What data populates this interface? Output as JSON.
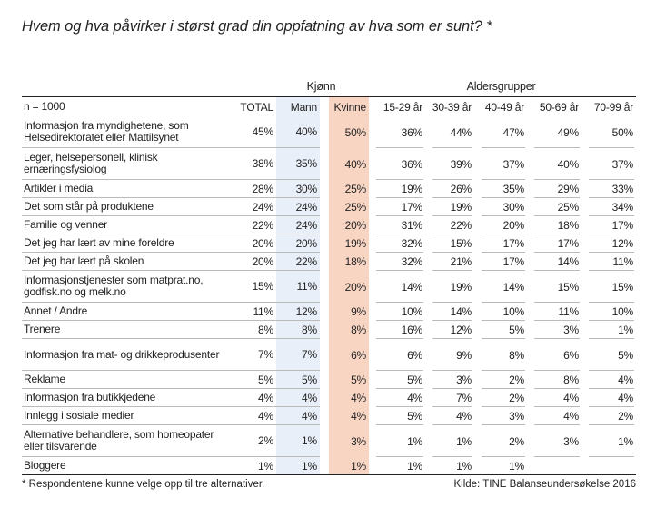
{
  "title": "Hvem og hva påvirker i størst grad din oppfatning av hva som er sunt? *",
  "group_headers": {
    "gender": "Kjønn",
    "age": "Aldersgrupper"
  },
  "columns": [
    "n = 1000",
    "TOTAL",
    "Mann",
    "Kvinne",
    "15-29 år",
    "30-39 år",
    "40-49 år",
    "50-69 år",
    "70-99 år"
  ],
  "rows": [
    {
      "label": "Informasjon fra myndighetene, som Helsedirektoratet eller Mattilsynet",
      "two": true,
      "values": [
        "45%",
        "40%",
        "50%",
        "36%",
        "44%",
        "47%",
        "49%",
        "50%"
      ]
    },
    {
      "label": "Leger, helsepersonell, klinisk ernæringsfysiolog",
      "two": true,
      "values": [
        "38%",
        "35%",
        "40%",
        "36%",
        "39%",
        "37%",
        "40%",
        "37%"
      ]
    },
    {
      "label": "Artikler i media",
      "values": [
        "28%",
        "30%",
        "25%",
        "19%",
        "26%",
        "35%",
        "29%",
        "33%"
      ]
    },
    {
      "label": "Det som står på produktene",
      "values": [
        "24%",
        "24%",
        "25%",
        "17%",
        "19%",
        "30%",
        "25%",
        "34%"
      ]
    },
    {
      "label": "Familie og venner",
      "values": [
        "22%",
        "24%",
        "20%",
        "31%",
        "22%",
        "20%",
        "18%",
        "17%"
      ]
    },
    {
      "label": "Det jeg har lært av mine foreldre",
      "values": [
        "20%",
        "20%",
        "19%",
        "32%",
        "15%",
        "17%",
        "17%",
        "12%"
      ]
    },
    {
      "label": "Det jeg har lært på skolen",
      "values": [
        "20%",
        "22%",
        "18%",
        "32%",
        "21%",
        "17%",
        "14%",
        "11%"
      ]
    },
    {
      "label": "Informasjonstjenester som matprat.no, godfisk.no og melk.no",
      "two": true,
      "values": [
        "15%",
        "11%",
        "20%",
        "14%",
        "19%",
        "14%",
        "15%",
        "15%"
      ]
    },
    {
      "label": "Annet / Andre",
      "values": [
        "11%",
        "12%",
        "9%",
        "10%",
        "14%",
        "10%",
        "11%",
        "10%"
      ]
    },
    {
      "label": "Trenere",
      "values": [
        "8%",
        "8%",
        "8%",
        "16%",
        "12%",
        "5%",
        "3%",
        "1%"
      ]
    },
    {
      "label": "Informasjon fra mat- og drikkeprodusenter",
      "two": true,
      "values": [
        "7%",
        "7%",
        "6%",
        "6%",
        "9%",
        "8%",
        "6%",
        "5%"
      ]
    },
    {
      "label": "Reklame",
      "values": [
        "5%",
        "5%",
        "5%",
        "5%",
        "3%",
        "2%",
        "8%",
        "4%"
      ]
    },
    {
      "label": "Informasjon fra butikkjedene",
      "values": [
        "4%",
        "4%",
        "4%",
        "4%",
        "7%",
        "2%",
        "4%",
        "4%"
      ]
    },
    {
      "label": "Innlegg i sosiale medier",
      "values": [
        "4%",
        "4%",
        "4%",
        "5%",
        "4%",
        "3%",
        "4%",
        "2%"
      ]
    },
    {
      "label": "Alternative behandlere, som homeopater eller tilsvarende",
      "two": true,
      "values": [
        "2%",
        "1%",
        "3%",
        "1%",
        "1%",
        "2%",
        "3%",
        "1%"
      ]
    },
    {
      "label": "Bloggere",
      "values": [
        "1%",
        "1%",
        "1%",
        "1%",
        "1%",
        "1%",
        "",
        ""
      ]
    }
  ],
  "footnote": "* Respondentene kunne velge opp til tre alternativer.",
  "source": "Kilde: TINE Balanseundersøkelse 2016",
  "colors": {
    "mann_bg": "#e9eff8",
    "kvinne_bg": "#f8d5c3"
  }
}
